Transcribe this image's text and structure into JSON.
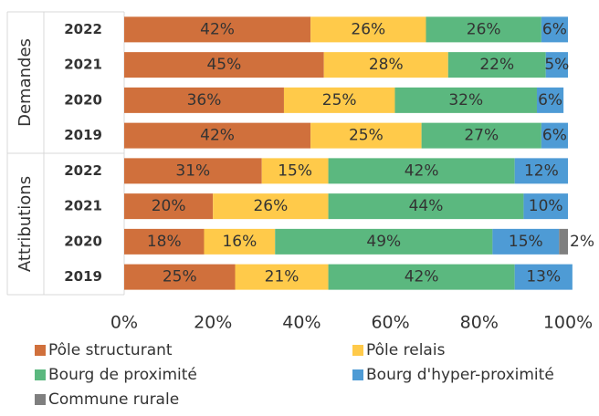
{
  "chart_data": {
    "type": "stacked-bar-horizontal",
    "categories": [
      "2022",
      "2021",
      "2020",
      "2019",
      "2022",
      "2021",
      "2020",
      "2019"
    ],
    "category_groups": [
      {
        "name": "Demandes",
        "size": 4
      },
      {
        "name": "Attributions",
        "size": 4
      }
    ],
    "series": [
      {
        "name": "Pôle structurant",
        "color": "#d0703c",
        "values": [
          42,
          45,
          36,
          42,
          31,
          20,
          18,
          25
        ],
        "value_labels": [
          "42%",
          "45%",
          "36%",
          "42%",
          "31%",
          "20%",
          "18%",
          "25%"
        ]
      },
      {
        "name": "Pôle relais",
        "color": "#ffca4a",
        "values": [
          26,
          28,
          25,
          25,
          15,
          26,
          16,
          21
        ],
        "value_labels": [
          "26%",
          "28%",
          "25%",
          "25%",
          "15%",
          "26%",
          "16%",
          "21%"
        ]
      },
      {
        "name": "Bourg de proximité",
        "color": "#5bb87f",
        "values": [
          26,
          22,
          32,
          27,
          42,
          44,
          49,
          42
        ],
        "value_labels": [
          "26%",
          "22%",
          "32%",
          "27%",
          "42%",
          "44%",
          "49%",
          "42%"
        ]
      },
      {
        "name": "Bourg d'hyper-proximité",
        "color": "#4e9bd5",
        "values": [
          6,
          5,
          6,
          6,
          12,
          10,
          15,
          13
        ],
        "value_labels": [
          "6%",
          "5%",
          "6%",
          "6%",
          "12%",
          "10%",
          "15%",
          "13%"
        ]
      },
      {
        "name": "Commune rurale",
        "color": "#7f7f7f",
        "values": [
          0,
          0,
          0,
          0,
          0,
          0,
          2,
          0
        ],
        "value_labels": [
          null,
          null,
          null,
          null,
          null,
          null,
          "2%",
          null
        ]
      }
    ],
    "xlim": [
      0,
      100
    ],
    "xticks": [
      {
        "value": 0,
        "label": "0%"
      },
      {
        "value": 20,
        "label": "20%"
      },
      {
        "value": 40,
        "label": "40%"
      },
      {
        "value": 60,
        "label": "60%"
      },
      {
        "value": 80,
        "label": "80%"
      },
      {
        "value": 100,
        "label": "100%"
      }
    ],
    "legend": "bottom"
  }
}
